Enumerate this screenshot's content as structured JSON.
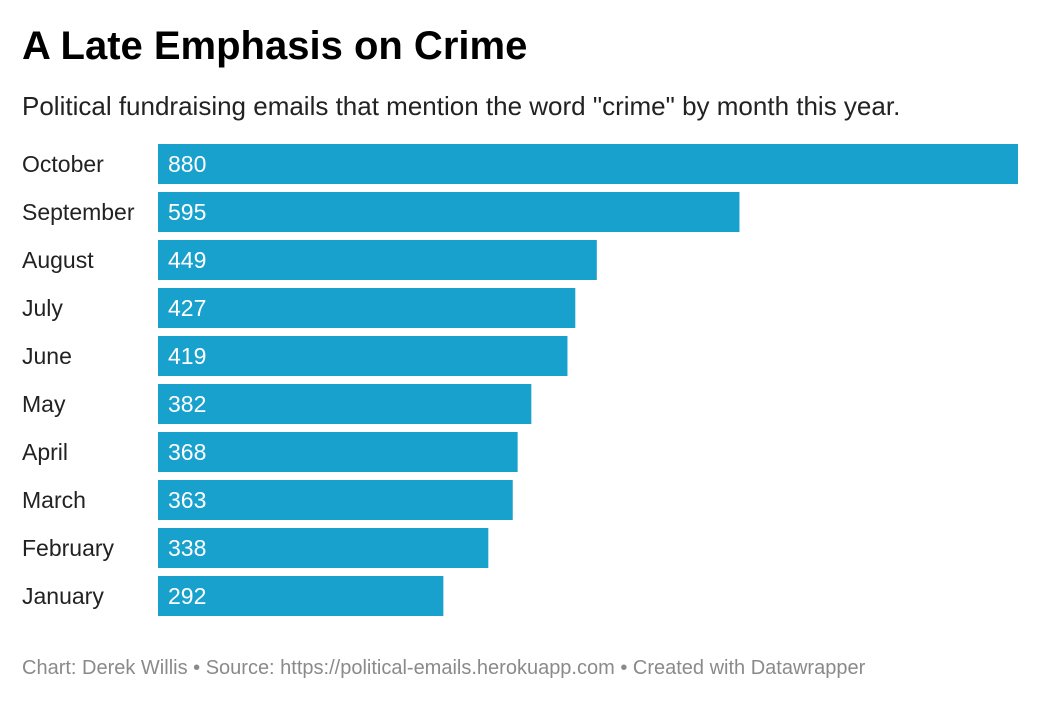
{
  "chart_data": {
    "type": "bar",
    "orientation": "horizontal",
    "title": "A Late Emphasis on Crime",
    "subtitle": "Political fundraising emails that mention the word \"crime\" by month this year.",
    "categories": [
      "October",
      "September",
      "August",
      "July",
      "June",
      "May",
      "April",
      "March",
      "February",
      "January"
    ],
    "values": [
      880,
      595,
      449,
      427,
      419,
      382,
      368,
      363,
      338,
      292
    ],
    "value_labels": [
      "880",
      "595",
      "449",
      "427",
      "419",
      "382",
      "368",
      "363",
      "338",
      "292"
    ],
    "xlim": [
      0,
      880
    ],
    "grid": false,
    "legend": "none",
    "bar_color": "#18a1cd",
    "label_color": "#ffffff"
  },
  "footer": {
    "text": "Chart: Derek Willis • Source: https://political-emails.herokuapp.com • Created with Datawrapper"
  },
  "colors": {
    "title": "#000000",
    "text": "#222222",
    "footer": "#8a8a8a"
  }
}
